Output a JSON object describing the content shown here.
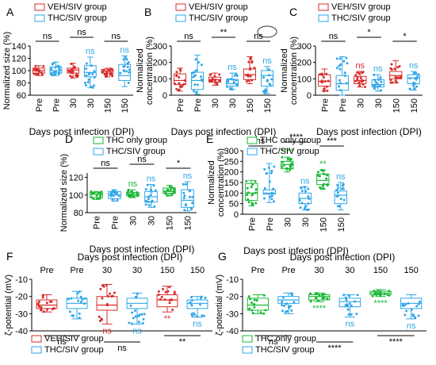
{
  "colors": {
    "veh": "#d92b2b",
    "thc_siv": "#2fa6e8",
    "thc_only": "#19b836",
    "axis": "#000000",
    "ns_highlight_ring": "#333333"
  },
  "sig_marks": {
    "ns": "ns",
    "one": "*",
    "two": "**",
    "three": "***",
    "four": "****"
  },
  "chart_data": [
    {
      "panel": "A",
      "type": "box",
      "ylabel": "Normalized size (%)",
      "xlabel": "Days post infection (DPI)",
      "ylim": [
        60,
        140
      ],
      "yticks": [
        60,
        80,
        100,
        120,
        140
      ],
      "categories": [
        "Pre",
        "Pre",
        "30",
        "30",
        "150",
        "150"
      ],
      "legend": [
        "VEH/SIV group",
        "THC/SIV group"
      ],
      "series": [
        {
          "group": "VEH/SIV group",
          "stats": [
            {
              "x": 0,
              "min": 92,
              "q1": 96,
              "median": 100,
              "q3": 104,
              "max": 108
            },
            {
              "x": 2,
              "min": 88,
              "q1": 96,
              "median": 101,
              "q3": 104,
              "max": 112
            },
            {
              "x": 4,
              "min": 90,
              "q1": 96,
              "median": 99,
              "q3": 102,
              "max": 104
            }
          ]
        },
        {
          "group": "THC/SIV group",
          "stats": [
            {
              "x": 1,
              "min": 92,
              "q1": 96,
              "median": 100,
              "q3": 106,
              "max": 114
            },
            {
              "x": 3,
              "min": 72,
              "q1": 90,
              "median": 97,
              "q3": 108,
              "max": 122
            },
            {
              "x": 5,
              "min": 74,
              "q1": 84,
              "median": 92,
              "q3": 110,
              "max": 124
            }
          ]
        }
      ],
      "comparisons": [
        {
          "a": 0,
          "b": 1,
          "label": "ns"
        },
        {
          "a": 2,
          "b": 3,
          "label": "ns"
        },
        {
          "a": 4,
          "b": 5,
          "label": "ns"
        }
      ],
      "box_labels": [
        {
          "x": 3,
          "label": "ns"
        },
        {
          "x": 5,
          "label": "ns"
        }
      ]
    },
    {
      "panel": "B",
      "type": "box",
      "ylabel": "Normalized concentration (%)",
      "xlabel": "Days post infection (DPI)",
      "ylim": [
        0,
        300
      ],
      "yticks": [
        0,
        100,
        200,
        300
      ],
      "categories": [
        "Pre",
        "Pre",
        "30",
        "30",
        "150",
        "150"
      ],
      "legend": [
        "VEH/SIV group",
        "THC/SIV group"
      ],
      "series": [
        {
          "group": "VEH/SIV group",
          "stats": [
            {
              "x": 0,
              "min": 25,
              "q1": 65,
              "median": 90,
              "q3": 130,
              "max": 165
            },
            {
              "x": 2,
              "min": 60,
              "q1": 80,
              "median": 95,
              "q3": 110,
              "max": 135
            },
            {
              "x": 4,
              "min": 70,
              "q1": 95,
              "median": 125,
              "q3": 160,
              "max": 235
            }
          ]
        },
        {
          "group": "THC/SIV group",
          "stats": [
            {
              "x": 1,
              "min": 5,
              "q1": 35,
              "median": 90,
              "q3": 140,
              "max": 245
            },
            {
              "x": 3,
              "min": 35,
              "q1": 55,
              "median": 70,
              "q3": 95,
              "max": 135
            },
            {
              "x": 5,
              "min": 10,
              "q1": 55,
              "median": 120,
              "q3": 150,
              "max": 175
            }
          ]
        }
      ],
      "comparisons": [
        {
          "a": 0,
          "b": 1,
          "label": "ns"
        },
        {
          "a": 2,
          "b": 3,
          "label": "**"
        },
        {
          "a": 4,
          "b": 5,
          "label": "ns"
        }
      ],
      "box_labels": [
        {
          "x": 3,
          "label": "ns"
        },
        {
          "x": 5,
          "label": "ns"
        }
      ],
      "highlight": {
        "x": 5,
        "label": "ns"
      }
    },
    {
      "panel": "C",
      "type": "box",
      "ylabel": "Normalized concentration (%)",
      "xlabel": "Days post infection (DPI)",
      "ylim": [
        0,
        300
      ],
      "yticks": [
        0,
        100,
        200,
        300
      ],
      "categories": [
        "Pre",
        "Pre",
        "30",
        "30",
        "150",
        "150"
      ],
      "legend": [
        "VEH/SIV group",
        "THC/SIV group"
      ],
      "series": [
        {
          "group": "VEH/SIV group",
          "stats": [
            {
              "x": 0,
              "min": 25,
              "q1": 55,
              "median": 85,
              "q3": 125,
              "max": 160
            },
            {
              "x": 2,
              "min": 50,
              "q1": 70,
              "median": 90,
              "q3": 115,
              "max": 145
            },
            {
              "x": 4,
              "min": 75,
              "q1": 100,
              "median": 120,
              "q3": 145,
              "max": 210
            }
          ]
        },
        {
          "group": "THC/SIV group",
          "stats": [
            {
              "x": 1,
              "min": 0,
              "q1": 30,
              "median": 70,
              "q3": 120,
              "max": 235
            },
            {
              "x": 3,
              "min": 25,
              "q1": 50,
              "median": 65,
              "q3": 95,
              "max": 125
            },
            {
              "x": 5,
              "min": 30,
              "q1": 70,
              "median": 105,
              "q3": 125,
              "max": 145
            }
          ]
        }
      ],
      "comparisons": [
        {
          "a": 0,
          "b": 1,
          "label": "ns"
        },
        {
          "a": 2,
          "b": 3,
          "label": "*"
        },
        {
          "a": 4,
          "b": 5,
          "label": "*"
        }
      ],
      "box_labels": [
        {
          "x": 2,
          "label": "ns"
        },
        {
          "x": 3,
          "label": "ns"
        },
        {
          "x": 5,
          "label": "ns"
        }
      ]
    },
    {
      "panel": "D",
      "type": "box",
      "ylabel": "Normalized size (%)",
      "xlabel": "Days post infection (DPI)",
      "ylim": [
        80,
        125
      ],
      "yticks": [
        80,
        100,
        120
      ],
      "categories": [
        "Pre",
        "Pre",
        "30",
        "30",
        "150",
        "150"
      ],
      "legend": [
        "THC only group",
        "THC/SIV group"
      ],
      "series": [
        {
          "group": "THC only group",
          "stats": [
            {
              "x": 0,
              "min": 95,
              "q1": 97,
              "median": 101,
              "q3": 103,
              "max": 104
            },
            {
              "x": 2,
              "min": 97,
              "q1": 99,
              "median": 101,
              "q3": 103,
              "max": 106
            },
            {
              "x": 4,
              "min": 99,
              "q1": 102,
              "median": 104,
              "q3": 108,
              "max": 111
            }
          ]
        },
        {
          "group": "THC/SIV group",
          "stats": [
            {
              "x": 1,
              "min": 93,
              "q1": 96,
              "median": 100,
              "q3": 104,
              "max": 106
            },
            {
              "x": 3,
              "min": 86,
              "q1": 92,
              "median": 98,
              "q3": 104,
              "max": 112
            },
            {
              "x": 5,
              "min": 82,
              "q1": 86,
              "median": 94,
              "q3": 106,
              "max": 115
            }
          ]
        }
      ],
      "comparisons": [
        {
          "a": 0,
          "b": 1,
          "label": "ns"
        },
        {
          "a": 2,
          "b": 3,
          "label": "ns"
        },
        {
          "a": 4,
          "b": 5,
          "label": "*"
        }
      ],
      "box_labels": [
        {
          "x": 2,
          "label": "ns"
        },
        {
          "x": 3,
          "label": "ns"
        },
        {
          "x": 5,
          "label": "ns"
        }
      ]
    },
    {
      "panel": "E",
      "type": "box",
      "ylabel": "Normalized concentration (%)",
      "xlabel": "Days post infection (DPI)",
      "ylim": [
        0,
        300
      ],
      "yticks": [
        0,
        50,
        100,
        150,
        200,
        250,
        300
      ],
      "categories": [
        "Pre",
        "Pre",
        "30",
        "30",
        "150",
        "150"
      ],
      "legend": [
        "THC only group",
        "THC/SIV group"
      ],
      "series": [
        {
          "group": "THC only group",
          "stats": [
            {
              "x": 0,
              "min": 40,
              "q1": 65,
              "median": 100,
              "q3": 145,
              "max": 160
            },
            {
              "x": 2,
              "min": 200,
              "q1": 215,
              "median": 235,
              "q3": 250,
              "max": 270
            },
            {
              "x": 4,
              "min": 120,
              "q1": 140,
              "median": 160,
              "q3": 190,
              "max": 210
            }
          ]
        },
        {
          "group": "THC/SIV group",
          "stats": [
            {
              "x": 1,
              "min": 55,
              "q1": 95,
              "median": 100,
              "q3": 115,
              "max": 240
            },
            {
              "x": 3,
              "min": 20,
              "q1": 50,
              "median": 75,
              "q3": 100,
              "max": 130
            },
            {
              "x": 5,
              "min": 20,
              "q1": 50,
              "median": 90,
              "q3": 110,
              "max": 150
            }
          ]
        }
      ],
      "comparisons": [
        {
          "a": 0,
          "b": 1,
          "label": "ns"
        },
        {
          "a": 2,
          "b": 3,
          "label": "****"
        },
        {
          "a": 4,
          "b": 5,
          "label": "***"
        }
      ],
      "box_labels": [
        {
          "x": 2,
          "label": "****"
        },
        {
          "x": 3,
          "label": "ns"
        },
        {
          "x": 4,
          "label": "**"
        },
        {
          "x": 5,
          "label": "ns"
        }
      ]
    },
    {
      "panel": "F",
      "type": "box",
      "ylabel": "ζ-potential (mV)",
      "xlabel": "Days post infection (DPI)",
      "ylim": [
        -40,
        -10
      ],
      "yticks": [
        -40,
        -30,
        -20,
        -10
      ],
      "categories": [
        "Pre",
        "Pre",
        "30",
        "30",
        "150",
        "150"
      ],
      "legend": [
        "VEH/SIV group",
        "THC/SIV group"
      ],
      "series": [
        {
          "group": "VEH/SIV group",
          "stats": [
            {
              "x": 0,
              "min": -29,
              "q1": -27,
              "median": -25,
              "q3": -22,
              "max": -19
            },
            {
              "x": 2,
              "min": -36,
              "q1": -28,
              "median": -25,
              "q3": -20,
              "max": -13
            },
            {
              "x": 4,
              "min": -29,
              "q1": -26,
              "median": -22,
              "q3": -19,
              "max": -14
            }
          ]
        },
        {
          "group": "THC/SIV group",
          "stats": [
            {
              "x": 1,
              "min": -33,
              "q1": -27,
              "median": -24,
              "q3": -21,
              "max": -17
            },
            {
              "x": 3,
              "min": -36,
              "q1": -27,
              "median": -24,
              "q3": -21,
              "max": -18
            },
            {
              "x": 5,
              "min": -32,
              "q1": -27,
              "median": -24,
              "q3": -22,
              "max": -20
            }
          ]
        }
      ],
      "comparisons": [
        {
          "a": 0,
          "b": 1,
          "label": "ns"
        },
        {
          "a": 2,
          "b": 3,
          "label": "ns"
        },
        {
          "a": 4,
          "b": 5,
          "label": "**"
        }
      ],
      "box_labels": [
        {
          "x": 2,
          "label": "ns"
        },
        {
          "x": 3,
          "label": "ns"
        },
        {
          "x": 4,
          "label": "**"
        },
        {
          "x": 5,
          "label": "ns"
        }
      ],
      "comparisons_below": true
    },
    {
      "panel": "G",
      "type": "box",
      "ylabel": "ζ-potential (mV)",
      "xlabel": "Days post infection (DPI)",
      "ylim": [
        -40,
        -10
      ],
      "yticks": [
        -40,
        -30,
        -20,
        -10
      ],
      "categories": [
        "Pre",
        "Pre",
        "30",
        "30",
        "150",
        "150"
      ],
      "legend": [
        "THC only group",
        "THC/SIV group"
      ],
      "series": [
        {
          "group": "THC only group",
          "stats": [
            {
              "x": 0,
              "min": -30,
              "q1": -28,
              "median": -25,
              "q3": -21,
              "max": -19
            },
            {
              "x": 2,
              "min": -23,
              "q1": -22,
              "median": -20,
              "q3": -19,
              "max": -18
            },
            {
              "x": 4,
              "min": -20,
              "q1": -19,
              "median": -18,
              "q3": -17,
              "max": -16
            }
          ]
        },
        {
          "group": "THC/SIV group",
          "stats": [
            {
              "x": 1,
              "min": -30,
              "q1": -24,
              "median": -22,
              "q3": -20,
              "max": -18
            },
            {
              "x": 3,
              "min": -32,
              "q1": -26,
              "median": -23,
              "q3": -21,
              "max": -19
            },
            {
              "x": 5,
              "min": -33,
              "q1": -27,
              "median": -24,
              "q3": -21,
              "max": -19
            }
          ]
        }
      ],
      "comparisons": [
        {
          "a": 0,
          "b": 1,
          "label": "ns"
        },
        {
          "a": 2,
          "b": 3,
          "label": "****"
        },
        {
          "a": 4,
          "b": 5,
          "label": "****"
        }
      ],
      "box_labels": [
        {
          "x": 2,
          "label": "****"
        },
        {
          "x": 3,
          "label": "ns"
        },
        {
          "x": 4,
          "label": "****"
        },
        {
          "x": 5,
          "label": "ns"
        }
      ],
      "comparisons_below": true
    }
  ]
}
